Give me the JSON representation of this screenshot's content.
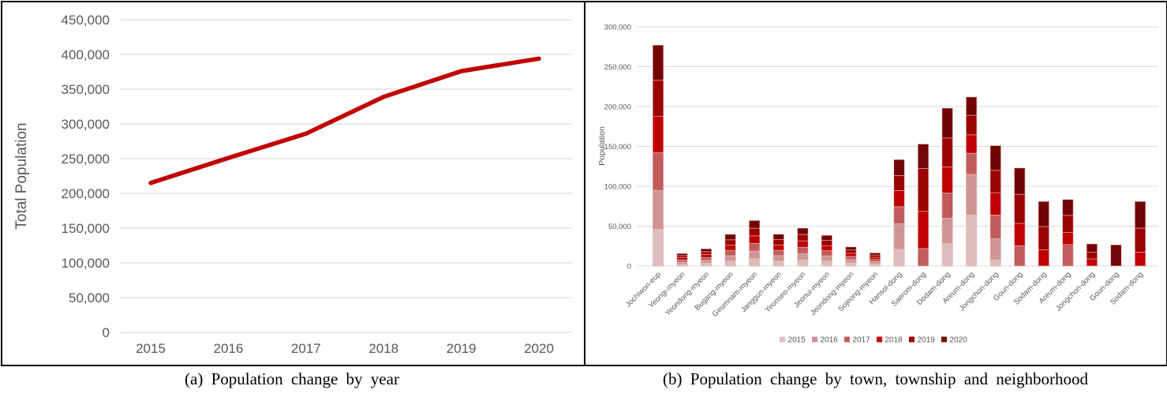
{
  "figure": {
    "caption_a": "(a) Population change by year",
    "caption_b": "(b) Population change by town, township and neighborhood"
  },
  "colors": {
    "line": "#c00000",
    "grid": "#d9d9d9",
    "axis_text": "#595959",
    "border": "#000000",
    "bar_outline": "#e8c0c0"
  },
  "chart_data": [
    {
      "type": "line",
      "title": "",
      "xlabel": "",
      "ylabel": "Total Population",
      "x": [
        "2015",
        "2016",
        "2017",
        "2018",
        "2019",
        "2020"
      ],
      "values": [
        215000,
        251000,
        286000,
        339000,
        376000,
        394000
      ],
      "ylim": [
        0,
        450000
      ],
      "ytick_step": 50000,
      "grid": true,
      "legend": false,
      "line_color": "#c00000"
    },
    {
      "type": "bar",
      "stacked": true,
      "title": "",
      "xlabel": "",
      "ylabel": "Population",
      "ylim": [
        0,
        300000
      ],
      "ytick_step": 50000,
      "grid": true,
      "legend_position": "bottom",
      "categories": [
        "Jochiwon-eup",
        "Yeongi-myeon",
        "Yeondong-myeon",
        "Bugang-myeon",
        "Geumnam-myeon",
        "Janggun-myeon",
        "Yeonseo-myeon",
        "Jeonui-myeon",
        "Jeondong-myeon",
        "Sojeong-myeon",
        "Hansol-dong",
        "Saerom-dong",
        "Dodam-dong",
        "Areum-dong",
        "Jongchon-dong",
        "Goun-dong",
        "Sodam-dong",
        "Areum-dong",
        "Jongchon-dong",
        "Goun-dong",
        "Sodam-dong"
      ],
      "series": [
        {
          "name": "2015",
          "color": "#ddbcbc",
          "values": [
            46500,
            2400,
            3500,
            6500,
            9400,
            6500,
            7800,
            6400,
            4000,
            2700,
            21000,
            0,
            28500,
            64000,
            8000,
            0,
            0,
            0,
            0,
            0,
            0
          ]
        },
        {
          "name": "2016",
          "color": "#cf9595",
          "values": [
            48500,
            2500,
            3500,
            6500,
            9400,
            6600,
            7900,
            6400,
            4000,
            2700,
            32000,
            0,
            31500,
            51000,
            26500,
            0,
            0,
            0,
            0,
            0,
            0
          ]
        },
        {
          "name": "2017",
          "color": "#c05c5c",
          "values": [
            47500,
            2600,
            3600,
            6600,
            9500,
            6600,
            7900,
            6400,
            4000,
            2700,
            21500,
            22000,
            31500,
            26500,
            29500,
            25500,
            0,
            27000,
            0,
            0,
            0
          ]
        },
        {
          "name": "2018",
          "color": "#c00000",
          "values": [
            45000,
            2700,
            3600,
            6600,
            9500,
            6700,
            8000,
            6400,
            4000,
            2800,
            20000,
            46500,
            33000,
            23000,
            28000,
            28000,
            20500,
            15000,
            8900,
            0,
            17500
          ]
        },
        {
          "name": "2019",
          "color": "#9c0202",
          "values": [
            45500,
            2700,
            3700,
            6700,
            9600,
            6700,
            8000,
            6500,
            4000,
            2800,
            19000,
            54000,
            36000,
            24500,
            28000,
            36500,
            29000,
            21500,
            8200,
            0,
            30000
          ]
        },
        {
          "name": "2020",
          "color": "#740404",
          "values": [
            44000,
            2800,
            3700,
            6800,
            9600,
            6800,
            7900,
            6400,
            4000,
            2700,
            20000,
            30500,
            37500,
            23000,
            31000,
            33000,
            31500,
            20000,
            10600,
            26500,
            33500
          ]
        }
      ]
    }
  ]
}
